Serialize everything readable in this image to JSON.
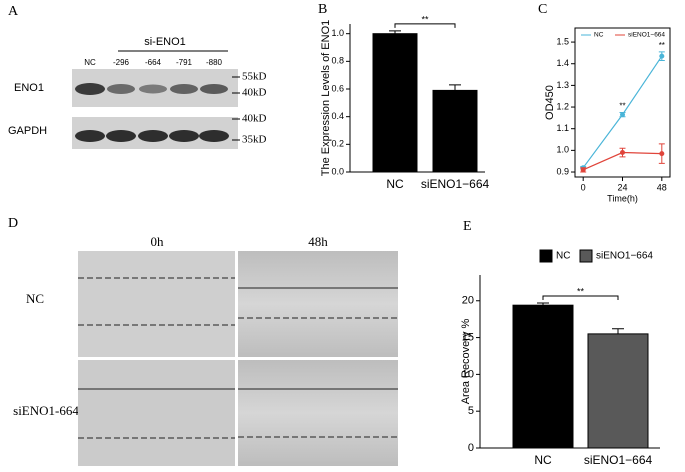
{
  "panel_a": {
    "label": "A",
    "group_label": "si-ENO1",
    "lanes": [
      "NC",
      "-296",
      "-664",
      "-791",
      "-880"
    ],
    "proteins": [
      "ENO1",
      "GAPDH"
    ],
    "markers": [
      "55kD",
      "40kD",
      "40kD",
      "35kD"
    ]
  },
  "panel_d": {
    "label": "D",
    "timepoints": [
      "0h",
      "48h"
    ],
    "groups": [
      "NC",
      "siENO1-664"
    ]
  },
  "chart_data": [
    {
      "type": "bar",
      "panel_label": "B",
      "ylabel": "The Expression Levels of ENO1",
      "categories": [
        "NC",
        "siENO1−664"
      ],
      "values": [
        1.0,
        0.59
      ],
      "errors": [
        0.02,
        0.04
      ],
      "colors": [
        "#000000",
        "#000000"
      ],
      "annotation": "**",
      "ylim": [
        0,
        1.07
      ],
      "yticks": [
        {
          "value": 0,
          "label": "0.0"
        },
        0.2,
        0.4,
        0.6,
        0.8,
        {
          "value": 1,
          "label": "1.0"
        }
      ],
      "legend": false
    },
    {
      "type": "line",
      "panel_label": "C",
      "ylabel": "OD450",
      "xlabel": "Time(h)",
      "x": [
        0,
        24,
        48
      ],
      "series": [
        {
          "name": "NC",
          "color": "#4ab5d8",
          "values": [
            0.92,
            1.165,
            1.435
          ],
          "errors": [
            0.005,
            0.01,
            0.02
          ]
        },
        {
          "name": "siENO1−664",
          "color": "#e0443a",
          "values": [
            0.91,
            0.99,
            0.985
          ],
          "errors": [
            0.01,
            0.02,
            0.045
          ]
        }
      ],
      "annotations": [
        "**",
        "**"
      ],
      "xlim": [
        -5,
        53
      ],
      "xticks": [
        0,
        24,
        48
      ],
      "ylim": [
        0.877,
        1.565
      ],
      "yticks": [
        0.9,
        {
          "value": 1,
          "label": "1.0"
        },
        1.1,
        1.2,
        1.3,
        1.4,
        1.5
      ]
    },
    {
      "type": "bar",
      "panel_label": "E",
      "ylabel": "Area Recovery %",
      "categories": [
        "NC",
        "siENO1−664"
      ],
      "values": [
        19.4,
        15.5
      ],
      "errors": [
        0.3,
        0.7
      ],
      "colors": [
        "#000000",
        "#595959"
      ],
      "annotation": "**",
      "ylim": [
        0,
        23.5
      ],
      "yticks": [
        0,
        5,
        10,
        15,
        20
      ],
      "legend": true
    }
  ]
}
